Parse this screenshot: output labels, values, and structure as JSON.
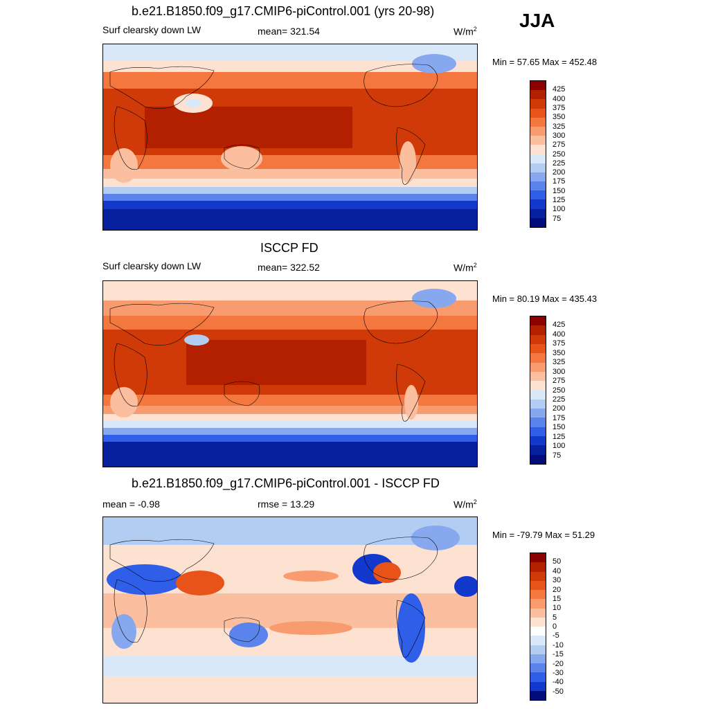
{
  "season": "JJA",
  "panels": [
    {
      "title": "b.e21.B1850.f09_g17.CMIP6-piControl.001 (yrs 20-98)",
      "left": "Surf clearsky down LW",
      "center": "mean= 321.54",
      "units_base": "W/m",
      "units_exp": "2",
      "minmax": "Min =  57.65 Max = 452.48",
      "colorbar_labels": [
        "425",
        "400",
        "375",
        "350",
        "325",
        "300",
        "275",
        "250",
        "225",
        "200",
        "175",
        "150",
        "125",
        "100",
        "75"
      ]
    },
    {
      "title": "ISCCP FD",
      "left": "Surf clearsky down LW",
      "center": "mean= 322.52",
      "units_base": "W/m",
      "units_exp": "2",
      "minmax": "Min =  80.19 Max = 435.43",
      "colorbar_labels": [
        "425",
        "400",
        "375",
        "350",
        "325",
        "300",
        "275",
        "250",
        "225",
        "200",
        "175",
        "150",
        "125",
        "100",
        "75"
      ]
    },
    {
      "title": "b.e21.B1850.f09_g17.CMIP6-piControl.001 - ISCCP FD",
      "left": "mean =  -0.98",
      "center": "rmse =  13.29",
      "units_base": "W/m",
      "units_exp": "2",
      "minmax": "Min = -79.79 Max =  51.29",
      "colorbar_labels": [
        "50",
        "40",
        "30",
        "20",
        "15",
        "10",
        "5",
        "0",
        "-5",
        "-10",
        "-15",
        "-20",
        "-30",
        "-40",
        "-50"
      ]
    }
  ],
  "colors": {
    "abs_scale": [
      "#8b0000",
      "#b22000",
      "#d03a08",
      "#e8531a",
      "#f4773f",
      "#f89c70",
      "#fbbf9f",
      "#fde2d2",
      "#d9e8f8",
      "#b3cdf2",
      "#87a8ee",
      "#5a83ec",
      "#2f5ee8",
      "#1239cc",
      "#06209e",
      "#020c7a"
    ],
    "diff_scale": [
      "#8b0000",
      "#b22000",
      "#d03a08",
      "#e8531a",
      "#f4773f",
      "#f89c70",
      "#fbbf9f",
      "#fde2d2",
      "#ffffff",
      "#d9e8f8",
      "#b3cdf2",
      "#87a8ee",
      "#5a83ec",
      "#2f5ee8",
      "#1239cc",
      "#020c7a"
    ]
  }
}
